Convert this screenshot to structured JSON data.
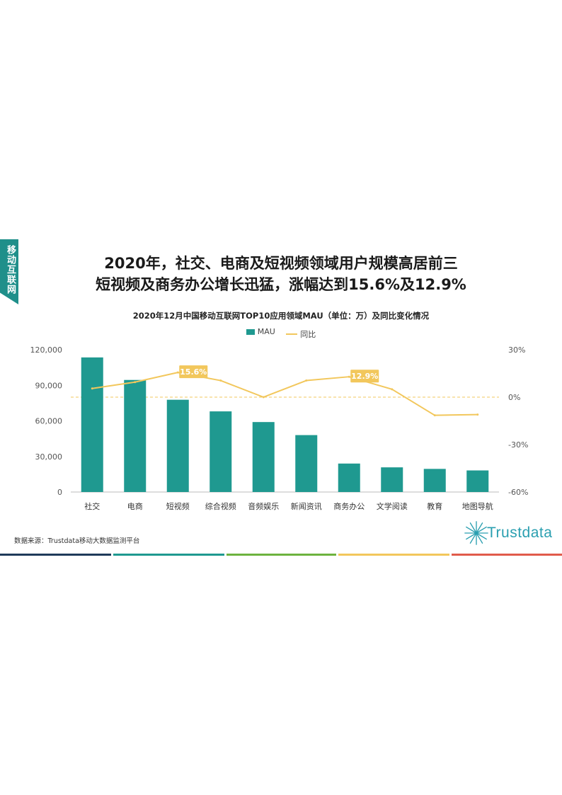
{
  "side_tab": "移动互联网",
  "headline": {
    "line1": "2020年，社交、电商及短视频领域用户规模高居前三",
    "line2": "短视频及商务办公增长迅猛，涨幅达到15.6%及12.9%"
  },
  "source": "数据来源：Trustdata移动大数据监测平台",
  "logo_text": "Trustdata",
  "colors": {
    "bar": "#1f9990",
    "line": "#f2c75c",
    "callout": "#f2c75c",
    "tab": "#1f8f8a",
    "rule": [
      "#1f3a5a",
      "#1f9990",
      "#6db33f",
      "#f2c75c",
      "#e15b4b"
    ]
  },
  "chart_data": {
    "type": "bar",
    "title": "2020年12月中国移动互联网TOP10应用领域MAU（单位：万）及同比变化情况",
    "categories": [
      "社交",
      "电商",
      "短视频",
      "综合视频",
      "音频娱乐",
      "新闻资讯",
      "商务办公",
      "文学阅读",
      "教育",
      "地图导航"
    ],
    "legend": [
      "MAU",
      "同比"
    ],
    "legend_position": "top-center",
    "series": [
      {
        "name": "MAU",
        "type": "bar",
        "axis": "left",
        "values": [
          113500,
          94500,
          77800,
          68000,
          59000,
          48000,
          24000,
          20800,
          19500,
          18200
        ]
      },
      {
        "name": "同比",
        "type": "line",
        "axis": "right",
        "values": [
          5.5,
          9.5,
          15.6,
          10.5,
          0,
          10.5,
          12.9,
          5,
          -11.5,
          -11
        ]
      }
    ],
    "y_left": {
      "lim": [
        0,
        120000
      ],
      "ticks": [
        "0",
        "30,000",
        "60,000",
        "90,000",
        "120,000"
      ]
    },
    "y_right": {
      "lim": [
        -60,
        30
      ],
      "ticks": [
        "-60%",
        "-30%",
        "0%",
        "30%"
      ]
    },
    "callouts": [
      {
        "index": 2,
        "label": "15.6%"
      },
      {
        "index": 6,
        "label": "12.9%"
      }
    ],
    "zero_reference_line": true
  }
}
